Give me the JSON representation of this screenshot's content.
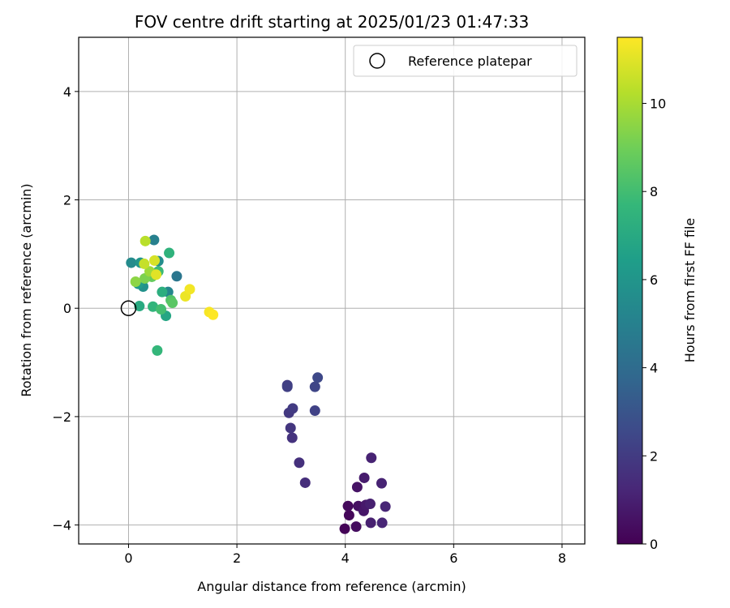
{
  "chart_data": {
    "type": "scatter",
    "title": "FOV centre drift starting at 2025/01/23 01:47:33",
    "xlabel": "Angular distance from reference (arcmin)",
    "ylabel": "Rotation from reference (arcmin)",
    "xlim": [
      -0.92,
      8.42
    ],
    "ylim": [
      -4.35,
      5.0
    ],
    "xticks": [
      0,
      2,
      4,
      6,
      8
    ],
    "yticks": [
      -4,
      -2,
      0,
      2,
      4
    ],
    "xtick_labels": [
      "0",
      "2",
      "4",
      "6",
      "8"
    ],
    "ytick_labels": [
      "−4",
      "−2",
      "0",
      "2",
      "4"
    ],
    "grid": true,
    "legend": {
      "label": "Reference platepar",
      "placement": "top-right"
    },
    "reference_point": {
      "x": 0,
      "y": 0
    },
    "colorbar": {
      "label": "Hours from first FF file",
      "colormap": "viridis",
      "range": [
        0,
        11.5
      ],
      "ticks": [
        0,
        2,
        4,
        6,
        8,
        10
      ],
      "tick_labels": [
        "0",
        "2",
        "4",
        "6",
        "8",
        "10"
      ]
    },
    "points": [
      {
        "x": 3.99,
        "y": -4.07,
        "c": 0.1
      },
      {
        "x": 4.07,
        "y": -3.82,
        "c": 0.2
      },
      {
        "x": 4.05,
        "y": -3.65,
        "c": 0.3
      },
      {
        "x": 4.2,
        "y": -4.03,
        "c": 0.4
      },
      {
        "x": 4.24,
        "y": -3.65,
        "c": 0.5
      },
      {
        "x": 4.22,
        "y": -3.3,
        "c": 0.6
      },
      {
        "x": 4.34,
        "y": -3.74,
        "c": 0.7
      },
      {
        "x": 4.38,
        "y": -3.63,
        "c": 0.8
      },
      {
        "x": 4.35,
        "y": -3.13,
        "c": 0.9
      },
      {
        "x": 4.47,
        "y": -3.96,
        "c": 1.0
      },
      {
        "x": 4.46,
        "y": -3.61,
        "c": 1.0
      },
      {
        "x": 4.48,
        "y": -2.76,
        "c": 1.1
      },
      {
        "x": 4.67,
        "y": -3.23,
        "c": 1.1
      },
      {
        "x": 4.68,
        "y": -3.96,
        "c": 1.2
      },
      {
        "x": 4.74,
        "y": -3.66,
        "c": 1.2
      },
      {
        "x": 3.26,
        "y": -3.22,
        "c": 1.5
      },
      {
        "x": 3.15,
        "y": -2.85,
        "c": 1.6
      },
      {
        "x": 3.02,
        "y": -2.39,
        "c": 1.7
      },
      {
        "x": 2.99,
        "y": -2.21,
        "c": 1.8
      },
      {
        "x": 2.96,
        "y": -1.93,
        "c": 1.9
      },
      {
        "x": 3.03,
        "y": -1.85,
        "c": 2.0
      },
      {
        "x": 2.93,
        "y": -1.42,
        "c": 2.1
      },
      {
        "x": 2.93,
        "y": -1.45,
        "c": 2.2
      },
      {
        "x": 3.44,
        "y": -1.89,
        "c": 2.3
      },
      {
        "x": 3.44,
        "y": -1.45,
        "c": 2.4
      },
      {
        "x": 3.49,
        "y": -1.28,
        "c": 2.5
      },
      {
        "x": 0.89,
        "y": 0.59,
        "c": 4.5
      },
      {
        "x": 0.47,
        "y": 1.26,
        "c": 5.0
      },
      {
        "x": 0.73,
        "y": 0.3,
        "c": 5.3
      },
      {
        "x": 0.05,
        "y": 0.84,
        "c": 5.5
      },
      {
        "x": 0.55,
        "y": 0.87,
        "c": 5.6
      },
      {
        "x": 0.27,
        "y": 0.4,
        "c": 5.8
      },
      {
        "x": 0.22,
        "y": 0.84,
        "c": 6.0
      },
      {
        "x": 0.18,
        "y": 0.45,
        "c": 6.3
      },
      {
        "x": 0.69,
        "y": -0.14,
        "c": 6.8
      },
      {
        "x": 0.2,
        "y": 0.04,
        "c": 7.0
      },
      {
        "x": 0.62,
        "y": 0.3,
        "c": 7.2
      },
      {
        "x": 0.75,
        "y": 1.02,
        "c": 7.4
      },
      {
        "x": 0.45,
        "y": 0.03,
        "c": 7.5
      },
      {
        "x": 0.53,
        "y": -0.78,
        "c": 7.6
      },
      {
        "x": 0.55,
        "y": 0.68,
        "c": 7.8
      },
      {
        "x": 0.6,
        "y": -0.02,
        "c": 8.0
      },
      {
        "x": 0.78,
        "y": 0.15,
        "c": 8.3
      },
      {
        "x": 0.81,
        "y": 0.1,
        "c": 8.5
      },
      {
        "x": 0.43,
        "y": 0.58,
        "c": 8.8
      },
      {
        "x": 0.3,
        "y": 0.55,
        "c": 9.2
      },
      {
        "x": 0.13,
        "y": 0.49,
        "c": 9.5
      },
      {
        "x": 0.39,
        "y": 0.68,
        "c": 9.8
      },
      {
        "x": 0.31,
        "y": 1.24,
        "c": 10.3
      },
      {
        "x": 0.29,
        "y": 0.82,
        "c": 10.5
      },
      {
        "x": 0.48,
        "y": 0.88,
        "c": 10.8
      },
      {
        "x": 0.51,
        "y": 0.62,
        "c": 11.0
      },
      {
        "x": 1.05,
        "y": 0.22,
        "c": 11.2
      },
      {
        "x": 1.13,
        "y": 0.35,
        "c": 11.3
      },
      {
        "x": 1.49,
        "y": -0.07,
        "c": 11.4
      },
      {
        "x": 1.56,
        "y": -0.12,
        "c": 11.5
      }
    ]
  }
}
